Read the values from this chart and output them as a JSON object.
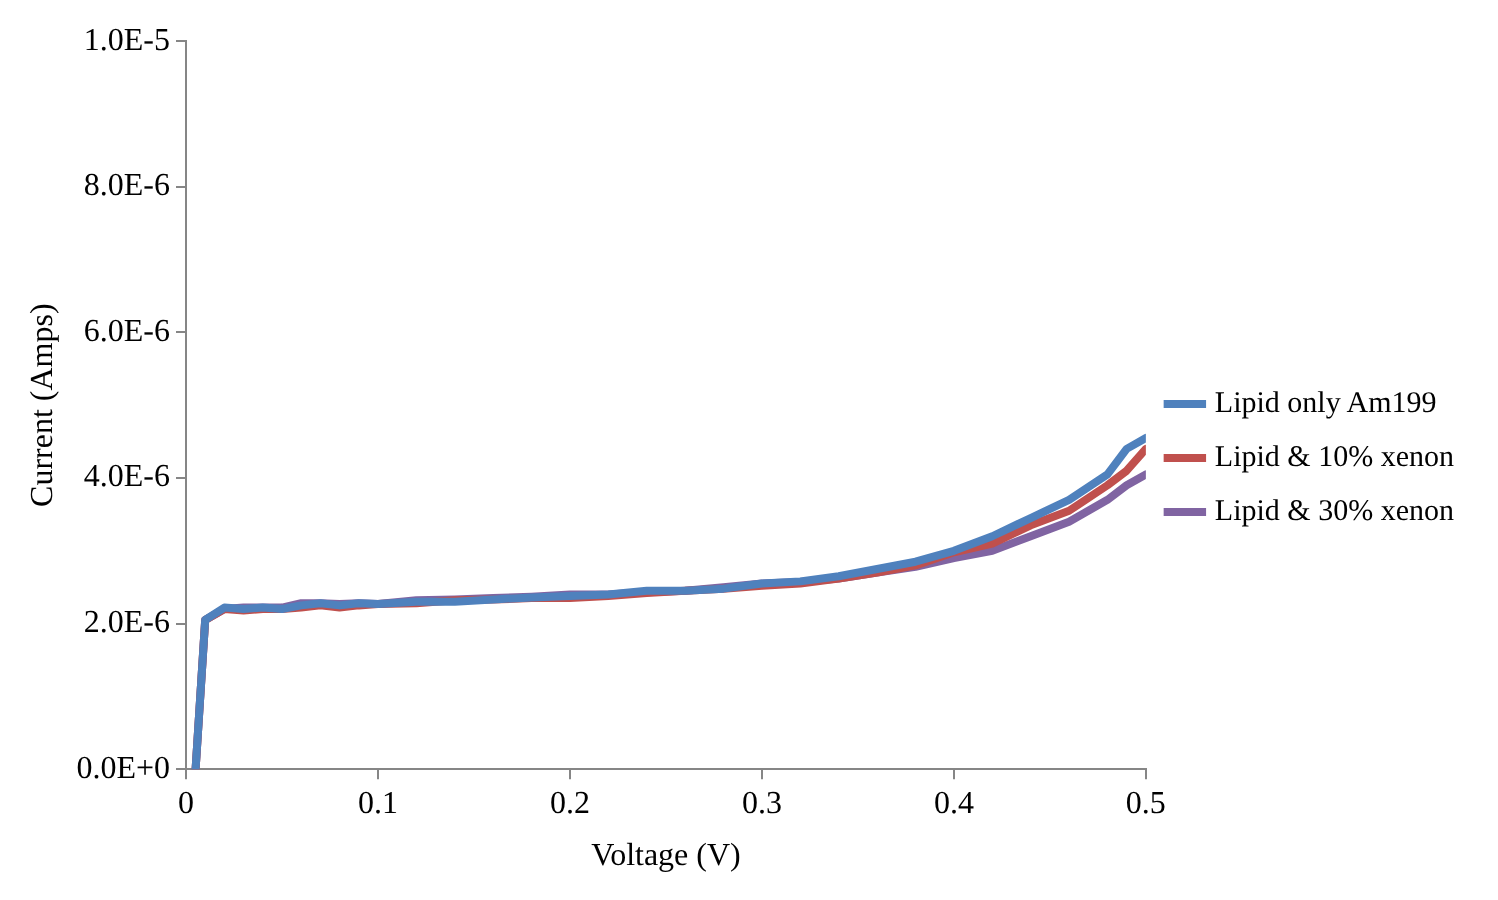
{
  "chart_data": {
    "type": "line",
    "xlabel": "Voltage (V)",
    "ylabel": "Current (Amps)",
    "x": [
      0.005,
      0.01,
      0.02,
      0.03,
      0.04,
      0.05,
      0.06,
      0.07,
      0.08,
      0.09,
      0.1,
      0.12,
      0.14,
      0.16,
      0.18,
      0.2,
      0.22,
      0.24,
      0.26,
      0.28,
      0.3,
      0.32,
      0.34,
      0.36,
      0.38,
      0.4,
      0.42,
      0.44,
      0.46,
      0.48,
      0.49,
      0.5
    ],
    "series": [
      {
        "name": "Lipid only Am199",
        "color": "#4f81bd",
        "values": [
          0,
          2.05e-06,
          2.22e-06,
          2.2e-06,
          2.22e-06,
          2.2e-06,
          2.25e-06,
          2.28e-06,
          2.25e-06,
          2.28e-06,
          2.27e-06,
          2.3e-06,
          2.3e-06,
          2.33e-06,
          2.36e-06,
          2.38e-06,
          2.4e-06,
          2.45e-06,
          2.45e-06,
          2.48e-06,
          2.55e-06,
          2.58e-06,
          2.65e-06,
          2.75e-06,
          2.85e-06,
          3e-06,
          3.2e-06,
          3.45e-06,
          3.7e-06,
          4.05e-06,
          4.4e-06,
          4.55e-06
        ]
      },
      {
        "name": "Lipid & 10% xenon",
        "color": "#c0504d",
        "values": [
          0,
          2.05e-06,
          2.2e-06,
          2.18e-06,
          2.2e-06,
          2.2e-06,
          2.22e-06,
          2.25e-06,
          2.22e-06,
          2.25e-06,
          2.27e-06,
          2.28e-06,
          2.32e-06,
          2.33e-06,
          2.35e-06,
          2.35e-06,
          2.38e-06,
          2.42e-06,
          2.45e-06,
          2.48e-06,
          2.52e-06,
          2.55e-06,
          2.62e-06,
          2.7e-06,
          2.8e-06,
          2.98e-06,
          3.1e-06,
          3.35e-06,
          3.55e-06,
          3.9e-06,
          4.1e-06,
          4.4e-06
        ]
      },
      {
        "name": "Lipid & 30% xenon",
        "color": "#8064a2",
        "values": [
          0,
          2.05e-06,
          2.2e-06,
          2.22e-06,
          2.22e-06,
          2.22e-06,
          2.28e-06,
          2.28e-06,
          2.27e-06,
          2.28e-06,
          2.27e-06,
          2.32e-06,
          2.33e-06,
          2.35e-06,
          2.37e-06,
          2.4e-06,
          2.4e-06,
          2.43e-06,
          2.45e-06,
          2.5e-06,
          2.55e-06,
          2.57e-06,
          2.62e-06,
          2.7e-06,
          2.78e-06,
          2.9e-06,
          3e-06,
          3.2e-06,
          3.4e-06,
          3.7e-06,
          3.9e-06,
          4.05e-06
        ]
      }
    ],
    "xlim": [
      0,
      0.5
    ],
    "xticks": [
      0,
      0.1,
      0.2,
      0.3,
      0.4,
      0.5
    ],
    "ylim": [
      0,
      1e-05
    ],
    "yticks": [
      {
        "value": 0,
        "label": "0.0E+0"
      },
      {
        "value": 2e-06,
        "label": "2.0E-6"
      },
      {
        "value": 4e-06,
        "label": "4.0E-6"
      },
      {
        "value": 6e-06,
        "label": "6.0E-6"
      },
      {
        "value": 8e-06,
        "label": "8.0E-6"
      },
      {
        "value": 1e-05,
        "label": "1.0E-5"
      }
    ],
    "legend": "right",
    "marker": "none",
    "line_style": "solid"
  }
}
